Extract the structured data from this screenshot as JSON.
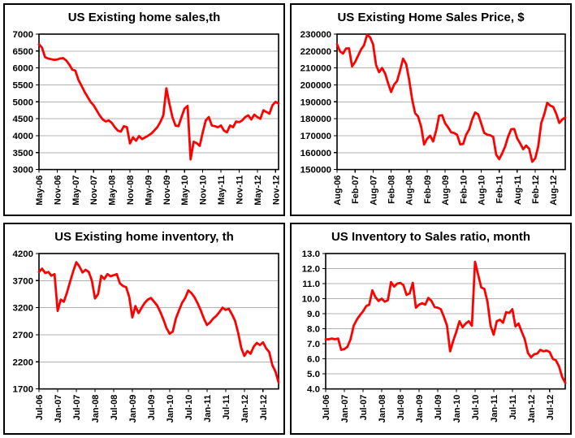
{
  "colors": {
    "line": "#ff0000",
    "grid": "#b3b3b3",
    "axis": "#000000",
    "text": "#000000",
    "panel_border": "#000000",
    "background": "#ffffff"
  },
  "chart_data": [
    {
      "id": "existing-home-sales",
      "type": "line",
      "title": "US Existing home sales,th",
      "ylim": [
        3000,
        7000
      ],
      "ytick_step": 500,
      "ylabels_top_to_bottom": [
        "7000",
        "6500",
        "6000",
        "5500",
        "5000",
        "4500",
        "4000",
        "3500",
        "3000"
      ],
      "xtick_labels": [
        "May-06",
        "Nov-06",
        "May-07",
        "Nov-07",
        "May-08",
        "Nov-08",
        "May-09",
        "Nov-09",
        "May-10",
        "Nov-10",
        "May-11",
        "Nov-11",
        "May-12",
        "Nov-12"
      ],
      "xtick_indices": [
        0,
        6,
        12,
        18,
        24,
        30,
        36,
        42,
        48,
        54,
        60,
        66,
        72,
        78
      ],
      "x_range": "monthly May-2006 to Dec-2012",
      "grid": "horizontal",
      "legend": "none",
      "values": [
        6700,
        6600,
        6320,
        6280,
        6260,
        6240,
        6250,
        6280,
        6290,
        6220,
        6100,
        5950,
        5920,
        5650,
        5480,
        5300,
        5150,
        5000,
        4900,
        4750,
        4600,
        4480,
        4420,
        4450,
        4380,
        4250,
        4150,
        4120,
        4280,
        4250,
        3770,
        3950,
        3850,
        3990,
        3900,
        3950,
        4000,
        4060,
        4150,
        4250,
        4400,
        4600,
        5400,
        4950,
        4550,
        4300,
        4280,
        4550,
        4800,
        4880,
        3300,
        3820,
        3780,
        3700,
        4100,
        4450,
        4550,
        4300,
        4280,
        4250,
        4300,
        4150,
        4100,
        4300,
        4250,
        4420,
        4400,
        4450,
        4550,
        4600,
        4480,
        4620,
        4550,
        4500,
        4750,
        4700,
        4650,
        4900,
        5000,
        4950
      ]
    },
    {
      "id": "existing-home-sales-price",
      "type": "line",
      "title": "US Existing Home Sales Price, $",
      "ylim": [
        150000,
        230000
      ],
      "ytick_step": 10000,
      "ylabels_top_to_bottom": [
        "230000",
        "220000",
        "210000",
        "200000",
        "190000",
        "180000",
        "170000",
        "160000",
        "150000"
      ],
      "xtick_labels": [
        "Aug-06",
        "Feb-07",
        "Aug-07",
        "Feb-08",
        "Aug-08",
        "Feb-09",
        "Aug-09",
        "Feb-10",
        "Aug-10",
        "Feb-11",
        "Aug-11",
        "Feb-12",
        "Aug-12"
      ],
      "xtick_indices": [
        0,
        6,
        12,
        18,
        24,
        30,
        36,
        42,
        48,
        54,
        60,
        66,
        72
      ],
      "x_range": "monthly Aug-2006 to Dec-2012",
      "grid": "horizontal",
      "legend": "none",
      "values": [
        224000,
        219800,
        218500,
        221500,
        221600,
        210900,
        213500,
        217200,
        220900,
        223500,
        229500,
        228200,
        224000,
        211700,
        207500,
        210000,
        206800,
        201000,
        195800,
        200100,
        202300,
        208600,
        215500,
        212400,
        203200,
        191600,
        183300,
        181300,
        175400,
        164800,
        168200,
        170000,
        166600,
        173000,
        181800,
        182100,
        177300,
        174900,
        172000,
        171600,
        170500,
        164900,
        165100,
        170600,
        173700,
        179600,
        183700,
        182600,
        177300,
        171700,
        170600,
        170200,
        169300,
        158800,
        156100,
        159600,
        163700,
        169600,
        173800,
        174000,
        168400,
        165400,
        162000,
        164200,
        162200,
        154600,
        156600,
        163600,
        177400,
        182600,
        189400,
        187800,
        187000,
        183000,
        177500,
        179500,
        180800
      ]
    },
    {
      "id": "existing-home-inventory",
      "type": "line",
      "title": "US Existing home inventory, th",
      "ylim": [
        1700,
        4200
      ],
      "ytick_step": 500,
      "ylabels_top_to_bottom": [
        "4200",
        "3700",
        "3200",
        "2700",
        "2200",
        "1700"
      ],
      "xtick_labels": [
        "Jul-06",
        "Jan-07",
        "Jul-07",
        "Jan-08",
        "Jul-08",
        "Jan-09",
        "Jul-09",
        "Jan-10",
        "Jul-10",
        "Jan-11",
        "Jul-11",
        "Jan-12",
        "Jul-12"
      ],
      "xtick_indices": [
        0,
        6,
        12,
        18,
        24,
        30,
        36,
        42,
        48,
        54,
        60,
        66,
        72
      ],
      "x_range": "monthly Jul-2006 to Dec-2012",
      "grid": "horizontal",
      "legend": "none",
      "values": [
        3860,
        3920,
        3840,
        3860,
        3790,
        3820,
        3140,
        3350,
        3310,
        3480,
        3680,
        3870,
        4040,
        3960,
        3850,
        3900,
        3860,
        3700,
        3370,
        3450,
        3790,
        3730,
        3820,
        3780,
        3800,
        3820,
        3650,
        3600,
        3580,
        3400,
        3020,
        3230,
        3100,
        3200,
        3290,
        3350,
        3380,
        3310,
        3240,
        3120,
        2980,
        2820,
        2720,
        2760,
        3000,
        3150,
        3290,
        3380,
        3520,
        3470,
        3390,
        3280,
        3150,
        3000,
        2880,
        2930,
        3000,
        3050,
        3120,
        3200,
        3160,
        3180,
        3080,
        2960,
        2740,
        2460,
        2310,
        2400,
        2350,
        2480,
        2550,
        2510,
        2560,
        2450,
        2380,
        2140,
        2020,
        1820
      ]
    },
    {
      "id": "inventory-to-sales-ratio",
      "type": "line",
      "title": "US Inventory to Sales ratio, month",
      "ylim": [
        4.0,
        13.0
      ],
      "ytick_step": 1.0,
      "ylabels_top_to_bottom": [
        "13.0",
        "12.0",
        "11.0",
        "10.0",
        "9.0",
        "8.0",
        "7.0",
        "6.0",
        "5.0",
        "4.0"
      ],
      "xtick_labels": [
        "Jul-06",
        "Jan-07",
        "Jul-07",
        "Jan-08",
        "Jul-08",
        "Jan-09",
        "Jul-09",
        "Jan-10",
        "Jul-10",
        "Jan-11",
        "Jul-11",
        "Jan-12",
        "Jul-12"
      ],
      "xtick_indices": [
        0,
        6,
        12,
        18,
        24,
        30,
        36,
        42,
        48,
        54,
        60,
        66,
        72
      ],
      "x_range": "monthly Jul-2006 to Dec-2012",
      "grid": "horizontal",
      "legend": "none",
      "values": [
        7.3,
        7.3,
        7.35,
        7.3,
        7.35,
        6.6,
        6.65,
        6.8,
        7.3,
        8.2,
        8.6,
        8.9,
        9.15,
        9.5,
        9.6,
        10.55,
        10.1,
        9.85,
        10.0,
        9.8,
        9.9,
        11.1,
        10.8,
        11.0,
        11.05,
        10.9,
        10.25,
        10.35,
        11.05,
        9.4,
        9.6,
        9.7,
        9.6,
        10.05,
        9.85,
        9.45,
        9.4,
        9.3,
        8.8,
        8.2,
        6.5,
        7.2,
        7.8,
        8.5,
        8.1,
        8.35,
        8.5,
        8.2,
        12.45,
        11.6,
        10.75,
        10.65,
        9.8,
        8.2,
        7.6,
        8.5,
        8.6,
        8.4,
        9.1,
        9.05,
        9.3,
        8.15,
        8.35,
        7.8,
        7.3,
        6.4,
        6.1,
        6.3,
        6.35,
        6.6,
        6.5,
        6.55,
        6.45,
        6.0,
        5.9,
        5.5,
        4.8,
        4.4
      ]
    }
  ]
}
